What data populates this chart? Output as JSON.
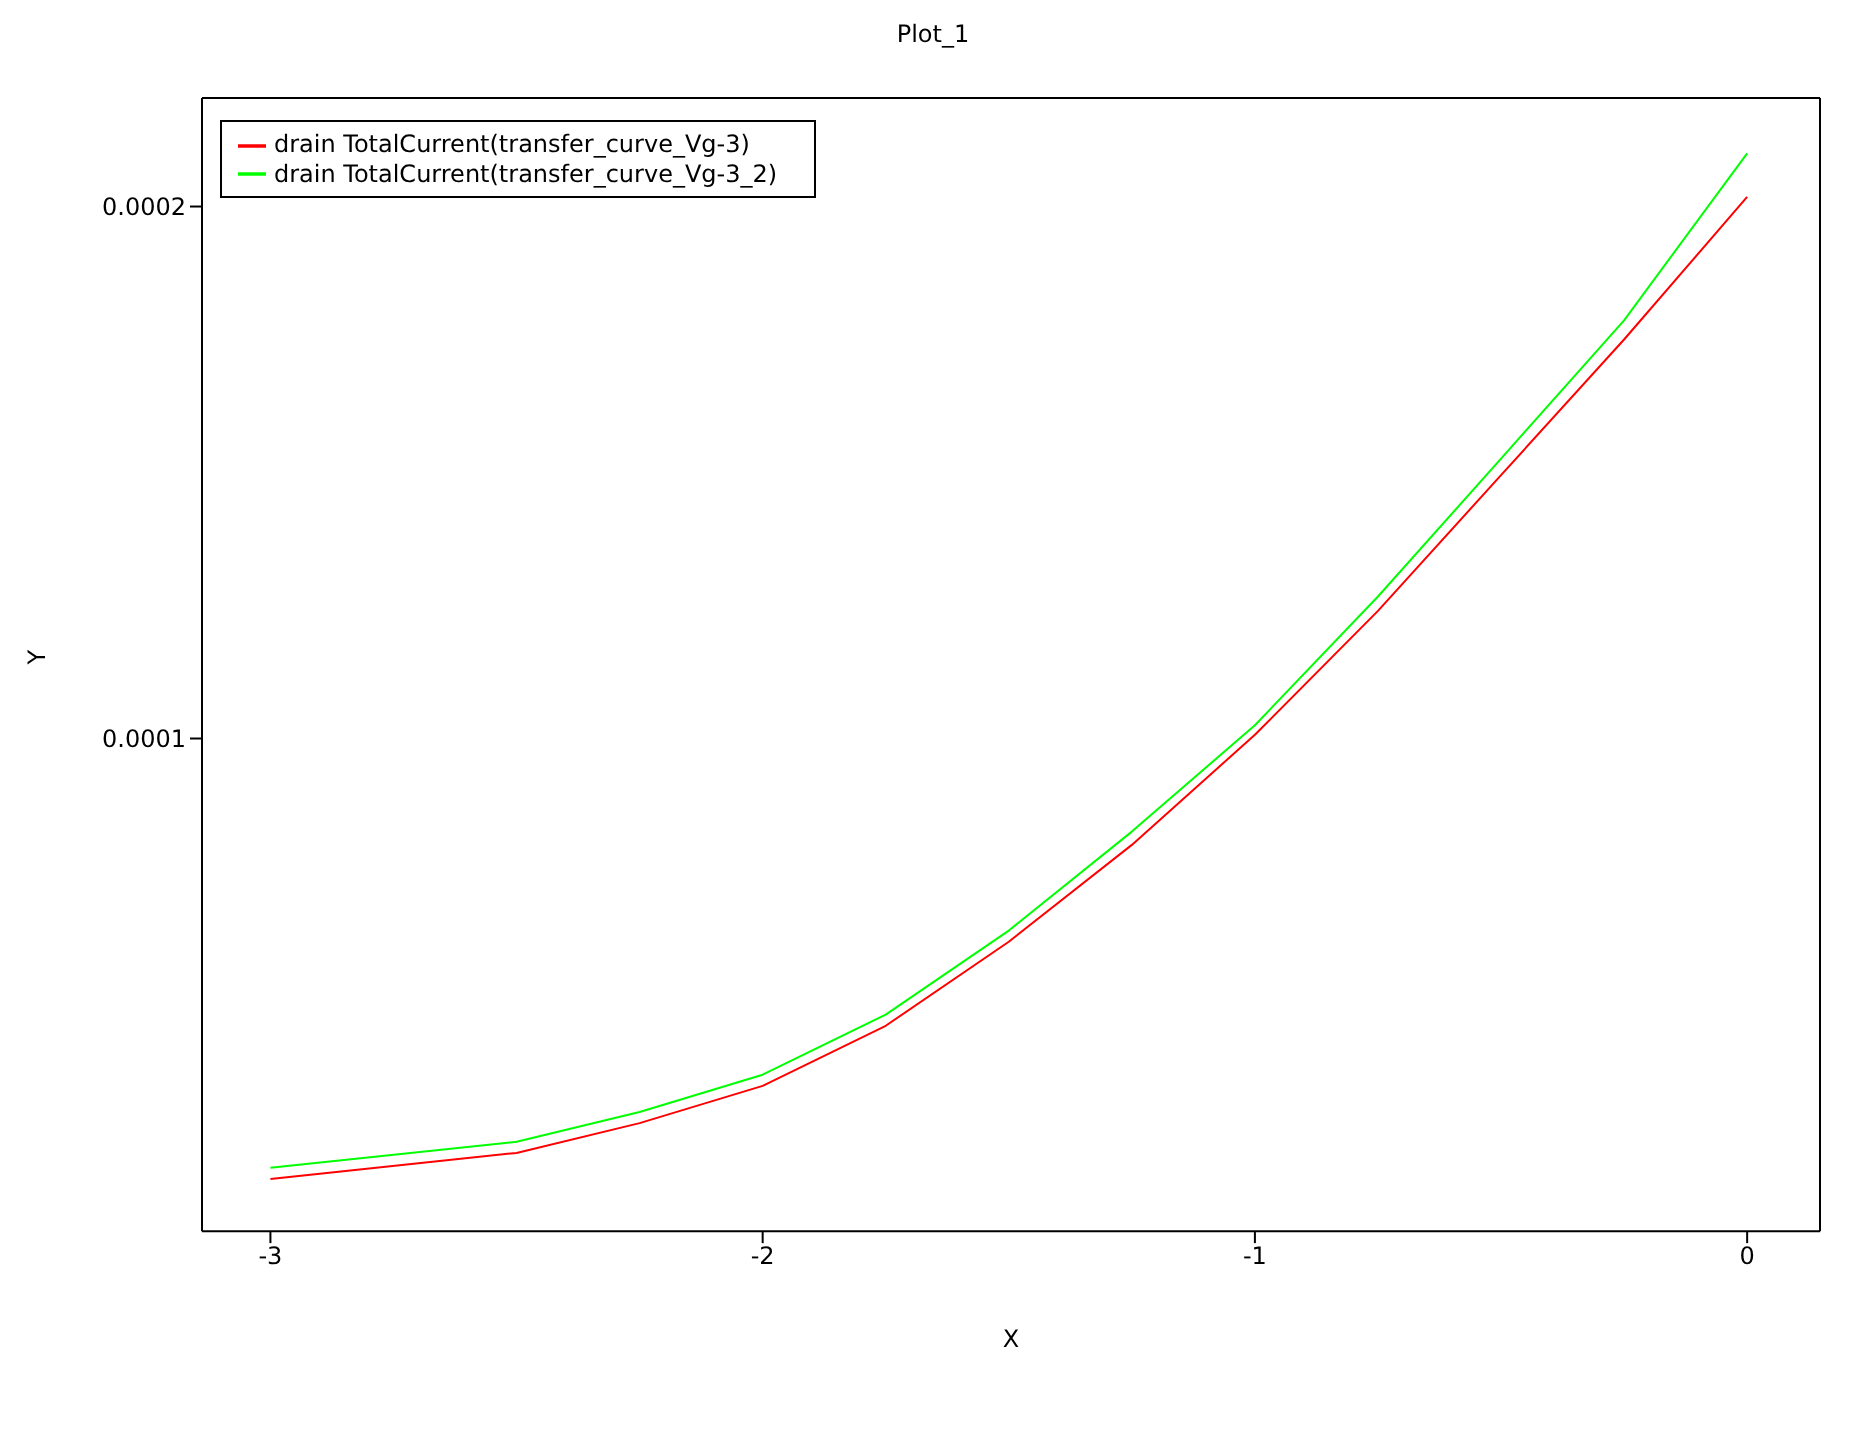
{
  "chart_data": {
    "type": "line",
    "title": "Plot_1",
    "xlabel": "X",
    "ylabel": "Y",
    "x": [
      -3,
      -2.5,
      -2.25,
      -2,
      -1.75,
      -1.5,
      -1.25,
      -1,
      -0.75,
      -0.5,
      -0.25,
      0
    ],
    "series": [
      {
        "name": "drain TotalCurrent(transfer_curve_Vg-3)",
        "color": "#ff0000",
        "values": [
          1.72e-05,
          2.21e-05,
          2.77e-05,
          3.47e-05,
          4.6e-05,
          6.18e-05,
          8e-05,
          0.0001007,
          0.000124,
          0.0001495,
          0.000175,
          0.0002018
        ]
      },
      {
        "name": "drain TotalCurrent(transfer_curve_Vg-3_2)",
        "color": "#00ff00",
        "values": [
          1.93e-05,
          2.42e-05,
          2.98e-05,
          3.68e-05,
          4.81e-05,
          6.39e-05,
          8.25e-05,
          0.0001025,
          0.0001267,
          0.0001526,
          0.0001786,
          0.00021
        ]
      }
    ],
    "xlim": [
      -3.139,
      0.148
    ],
    "ylim": [
      7.4e-06,
      0.0002204
    ],
    "xticks": [
      -3,
      -2,
      -1,
      0
    ],
    "yticks": [
      0.0001,
      0.0002
    ],
    "legend": "top left",
    "marker": "none",
    "line_style": "solid",
    "grid": false
  }
}
